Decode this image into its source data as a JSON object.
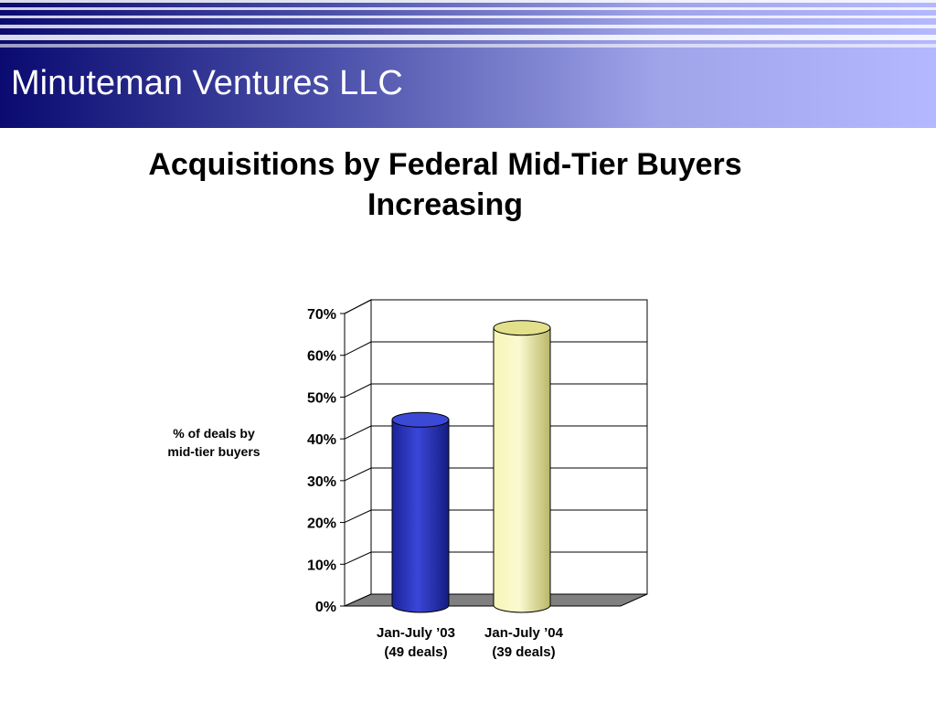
{
  "header": {
    "brand": "Minuteman Ventures LLC"
  },
  "slide": {
    "title_line1": "Acquisitions by Federal Mid-Tier Buyers",
    "title_line2": "Increasing"
  },
  "chart_data": {
    "type": "bar",
    "style": "3d-cylinder",
    "title": "",
    "ylabel_line1": "% of deals by",
    "ylabel_line2": "mid-tier buyers",
    "xlabel": "",
    "ylim": [
      0,
      70
    ],
    "y_ticks": [
      "0%",
      "10%",
      "20%",
      "30%",
      "40%",
      "50%",
      "60%",
      "70%"
    ],
    "grid": true,
    "legend": "none",
    "categories": [
      {
        "line1": "Jan-July ’03",
        "line2": "(49 deals)"
      },
      {
        "line1": "Jan-July ’04",
        "line2": "(39 deals)"
      }
    ],
    "values": [
      45,
      67
    ],
    "colors": [
      "#2a36b8",
      "#f2f0a0"
    ]
  }
}
